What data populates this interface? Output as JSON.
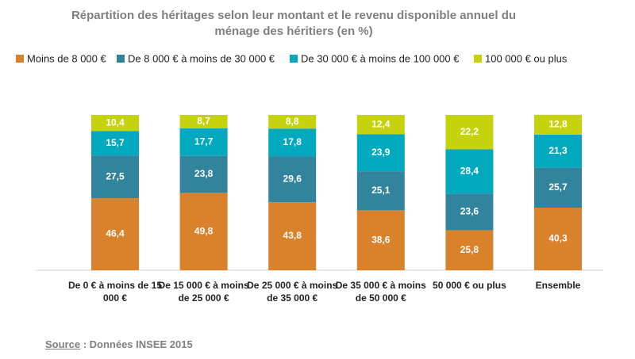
{
  "chart_data": {
    "type": "stacked_bar",
    "title": "Répartition des héritages selon leur montant et le revenu disponible annuel du ménage des héritiers (en %)",
    "categories": [
      "De 0 € à moins de 15 000 €",
      "De 15 000 € à moins de 25 000 €",
      "De 25 000 € à moins de 35 000 €",
      "De 35 000 € à moins de 50 000 €",
      "50 000 € ou plus",
      "Ensemble"
    ],
    "ylim": [
      0,
      100
    ],
    "series": [
      {
        "name": "Moins de 8 000 €",
        "color": "#d9822b",
        "values": [
          46.4,
          49.8,
          43.8,
          38.6,
          25.8,
          40.3
        ],
        "value_labels": [
          "46,4",
          "49,8",
          "43,8",
          "38,6",
          "25,8",
          "40,3"
        ]
      },
      {
        "name": "De 8 000 € à moins de 30 000 €",
        "color": "#31849b",
        "values": [
          27.5,
          23.8,
          29.6,
          25.1,
          23.6,
          25.7
        ],
        "value_labels": [
          "27,5",
          "23,8",
          "29,6",
          "25,1",
          "23,6",
          "25,7"
        ]
      },
      {
        "name": "De 30 000 € à moins de 100 000 €",
        "color": "#00a9be",
        "values": [
          15.7,
          17.7,
          17.8,
          23.9,
          28.4,
          21.3
        ],
        "value_labels": [
          "15,7",
          "17,7",
          "17,8",
          "23,9",
          "28,4",
          "21,3"
        ]
      },
      {
        "name": "100 000 € ou plus",
        "color": "#c5d30f",
        "values": [
          10.4,
          8.7,
          8.8,
          12.4,
          22.2,
          12.8
        ],
        "value_labels": [
          "10,4",
          "8,7",
          "8,8",
          "12,4",
          "22,2",
          "12,8"
        ]
      }
    ],
    "source_label": "Source",
    "source_text": " : Données INSEE 2015"
  }
}
